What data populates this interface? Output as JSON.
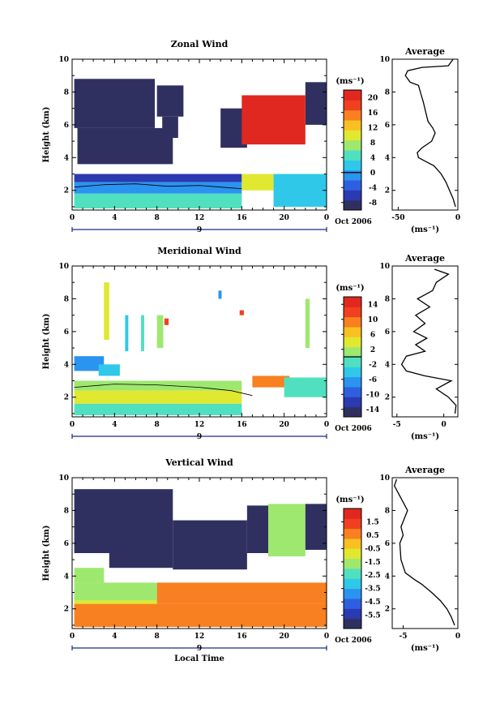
{
  "chart_data": [
    {
      "type": "heatmap",
      "title": "Zonal Wind",
      "ylabel": "Height (km)",
      "xlabel": "",
      "x_ticks": [
        "0",
        "4",
        "8",
        "12",
        "16",
        "20",
        "0"
      ],
      "y_ticks": [
        "2",
        "4",
        "6",
        "8",
        "10"
      ],
      "xlim": [
        0,
        24
      ],
      "ylim": [
        0.8,
        10
      ],
      "date_marker": "9",
      "date_label": "Oct 2006",
      "colorbar": {
        "unit": "(ms⁻¹)",
        "ticks": [
          "20",
          "16",
          "12",
          "8",
          "4",
          "0",
          "-4",
          "-8"
        ],
        "range": [
          -10,
          22
        ]
      },
      "regions": [
        {
          "x0": 0.2,
          "x1": 7.8,
          "y0": 5.8,
          "y1": 8.8,
          "level": 0.0
        },
        {
          "x0": 0.5,
          "x1": 9.5,
          "y0": 3.6,
          "y1": 5.8,
          "level": 0.02
        },
        {
          "x0": 8.0,
          "x1": 10.5,
          "y0": 6.5,
          "y1": 8.4,
          "level": 0.0
        },
        {
          "x0": 8.5,
          "x1": 10.0,
          "y0": 5.2,
          "y1": 6.5,
          "level": 0.01
        },
        {
          "x0": 14.0,
          "x1": 16.5,
          "y0": 4.6,
          "y1": 7.0,
          "level": 0.0
        },
        {
          "x0": 22.0,
          "x1": 24.0,
          "y0": 6.0,
          "y1": 8.6,
          "level": 0.0
        },
        {
          "x0": 16.0,
          "x1": 22.0,
          "y0": 4.8,
          "y1": 7.8,
          "level": 0.96
        },
        {
          "x0": 0.2,
          "x1": 16.0,
          "y0": 2.5,
          "y1": 3.0,
          "level": 0.12
        },
        {
          "x0": 0.2,
          "x1": 16.0,
          "y0": 1.8,
          "y1": 2.5,
          "level": 0.28
        },
        {
          "x0": 0.2,
          "x1": 16.0,
          "y0": 0.9,
          "y1": 1.8,
          "level": 0.42
        },
        {
          "x0": 16.0,
          "x1": 19.0,
          "y0": 2.0,
          "y1": 3.0,
          "level": 0.62
        },
        {
          "x0": 19.0,
          "x1": 24.0,
          "y0": 1.0,
          "y1": 3.0,
          "level": 0.35
        }
      ],
      "contour": [
        [
          0.2,
          2.2
        ],
        [
          3,
          2.35
        ],
        [
          6,
          2.4
        ],
        [
          9,
          2.25
        ],
        [
          12,
          2.3
        ],
        [
          14,
          2.2
        ],
        [
          16,
          2.1
        ]
      ],
      "profile": {
        "title": "Average",
        "xlabel": "(ms⁻¹)",
        "x_ticks": [
          "-50",
          "0"
        ],
        "xlim": [
          -55,
          0
        ],
        "y_ticks": [
          "2",
          "4",
          "6",
          "8",
          "10"
        ],
        "points": [
          [
            -2,
            1
          ],
          [
            -4,
            1.5
          ],
          [
            -7,
            2
          ],
          [
            -10,
            2.5
          ],
          [
            -14,
            3
          ],
          [
            -20,
            3.5
          ],
          [
            -28,
            3.8
          ],
          [
            -33,
            4
          ],
          [
            -34,
            4.3
          ],
          [
            -30,
            4.6
          ],
          [
            -22,
            5
          ],
          [
            -19,
            5.5
          ],
          [
            -21,
            5.8
          ],
          [
            -25,
            6.2
          ],
          [
            -27,
            6.8
          ],
          [
            -29,
            7.4
          ],
          [
            -31,
            7.9
          ],
          [
            -33,
            8.4
          ],
          [
            -40,
            8.6
          ],
          [
            -44,
            9
          ],
          [
            -42,
            9.3
          ],
          [
            -30,
            9.5
          ],
          [
            -8,
            9.6
          ],
          [
            -4,
            10
          ]
        ]
      }
    },
    {
      "type": "heatmap",
      "title": "Meridional Wind",
      "ylabel": "Height (km)",
      "xlabel": "",
      "x_ticks": [
        "0",
        "4",
        "8",
        "12",
        "16",
        "20",
        "0"
      ],
      "y_ticks": [
        "2",
        "4",
        "6",
        "8",
        "10"
      ],
      "xlim": [
        0,
        24
      ],
      "ylim": [
        0.8,
        10
      ],
      "date_marker": "9",
      "date_label": "Oct 2006",
      "colorbar": {
        "unit": "(ms⁻¹)",
        "ticks": [
          "14",
          "10",
          "6",
          "2",
          "-2",
          "-6",
          "-10",
          "-14"
        ],
        "range": [
          -16,
          16
        ]
      },
      "regions": [
        {
          "x0": 0.2,
          "x1": 3.0,
          "y0": 3.6,
          "y1": 4.5,
          "level": 0.25
        },
        {
          "x0": 2.5,
          "x1": 4.5,
          "y0": 3.3,
          "y1": 4.0,
          "level": 0.4
        },
        {
          "x0": 0.2,
          "x1": 16.0,
          "y0": 2.4,
          "y1": 3.0,
          "level": 0.5
        },
        {
          "x0": 0.2,
          "x1": 16.0,
          "y0": 1.6,
          "y1": 2.4,
          "level": 0.62
        },
        {
          "x0": 0.2,
          "x1": 16.0,
          "y0": 0.9,
          "y1": 1.6,
          "level": 0.45
        },
        {
          "x0": 17.0,
          "x1": 20.5,
          "y0": 2.6,
          "y1": 3.3,
          "level": 0.82
        },
        {
          "x0": 20.0,
          "x1": 24.0,
          "y0": 2.0,
          "y1": 3.2,
          "level": 0.48
        },
        {
          "x0": 3.0,
          "x1": 3.5,
          "y0": 5.5,
          "y1": 9.0,
          "level": 0.6
        },
        {
          "x0": 5.0,
          "x1": 5.3,
          "y0": 4.8,
          "y1": 7.0,
          "level": 0.35
        },
        {
          "x0": 6.5,
          "x1": 6.8,
          "y0": 4.8,
          "y1": 7.0,
          "level": 0.42
        },
        {
          "x0": 8.0,
          "x1": 8.6,
          "y0": 5.0,
          "y1": 7.0,
          "level": 0.58
        },
        {
          "x0": 8.7,
          "x1": 9.1,
          "y0": 6.4,
          "y1": 6.8,
          "level": 0.95
        },
        {
          "x0": 13.8,
          "x1": 14.1,
          "y0": 8.0,
          "y1": 8.5,
          "level": 0.3
        },
        {
          "x0": 15.8,
          "x1": 16.2,
          "y0": 7.0,
          "y1": 7.3,
          "level": 0.9
        },
        {
          "x0": 22.0,
          "x1": 22.4,
          "y0": 5.0,
          "y1": 8.0,
          "level": 0.55
        }
      ],
      "contour": [
        [
          0.2,
          2.6
        ],
        [
          4,
          2.8
        ],
        [
          8,
          2.75
        ],
        [
          12,
          2.6
        ],
        [
          15,
          2.4
        ],
        [
          17,
          2.1
        ]
      ],
      "profile": {
        "title": "Average",
        "xlabel": "(ms⁻¹)",
        "x_ticks": [
          "-5",
          "0"
        ],
        "xlim": [
          -5.5,
          1.5
        ],
        "y_ticks": [
          "2",
          "4",
          "6",
          "8",
          "10"
        ],
        "points": [
          [
            1.2,
            1
          ],
          [
            1.3,
            1.5
          ],
          [
            0.5,
            2
          ],
          [
            -0.8,
            2.5
          ],
          [
            0.8,
            3
          ],
          [
            -2,
            3.3
          ],
          [
            -4,
            3.6
          ],
          [
            -4.5,
            4
          ],
          [
            -4,
            4.5
          ],
          [
            -2,
            4.8
          ],
          [
            -3,
            5.2
          ],
          [
            -1.8,
            5.6
          ],
          [
            -3.2,
            6
          ],
          [
            -2,
            6.5
          ],
          [
            -3,
            7
          ],
          [
            -1.5,
            7.5
          ],
          [
            -2.8,
            8
          ],
          [
            -1.2,
            8.5
          ],
          [
            -0.8,
            9
          ],
          [
            0.5,
            9.5
          ],
          [
            -1,
            9.8
          ]
        ]
      }
    },
    {
      "type": "heatmap",
      "title": "Vertical Wind",
      "ylabel": "Height (km)",
      "xlabel": "Local Time",
      "x_ticks": [
        "0",
        "4",
        "8",
        "12",
        "16",
        "20",
        "0"
      ],
      "y_ticks": [
        "2",
        "4",
        "6",
        "8",
        "10"
      ],
      "xlim": [
        0,
        24
      ],
      "ylim": [
        0.8,
        10
      ],
      "date_marker": "9",
      "date_label": "Oct 2006",
      "colorbar": {
        "unit": "(ms⁻¹)",
        "ticks": [
          "1.5",
          "0.5",
          "-0.5",
          "-1.5",
          "-2.5",
          "-3.5",
          "-4.5",
          "-5.5"
        ],
        "range": [
          -6.5,
          2.5
        ]
      },
      "regions": [
        {
          "x0": 0.2,
          "x1": 9.5,
          "y0": 5.4,
          "y1": 9.3,
          "level": 0.0
        },
        {
          "x0": 3.5,
          "x1": 9.5,
          "y0": 4.5,
          "y1": 5.4,
          "level": 0.01
        },
        {
          "x0": 9.5,
          "x1": 16.5,
          "y0": 4.4,
          "y1": 7.4,
          "level": 0.0
        },
        {
          "x0": 16.5,
          "x1": 18.5,
          "y0": 5.4,
          "y1": 8.3,
          "level": 0.02
        },
        {
          "x0": 18.5,
          "x1": 22.0,
          "y0": 5.2,
          "y1": 8.4,
          "level": 0.55
        },
        {
          "x0": 22.0,
          "x1": 24.0,
          "y0": 5.6,
          "y1": 8.4,
          "level": 0.02
        },
        {
          "x0": 0.2,
          "x1": 3.0,
          "y0": 3.6,
          "y1": 4.5,
          "level": 0.5
        },
        {
          "x0": 0.2,
          "x1": 8.0,
          "y0": 2.5,
          "y1": 3.6,
          "level": 0.55
        },
        {
          "x0": 0.2,
          "x1": 8.0,
          "y0": 1.6,
          "y1": 2.5,
          "level": 0.62
        },
        {
          "x0": 8.0,
          "x1": 24.0,
          "y0": 2.3,
          "y1": 3.6,
          "level": 0.8
        },
        {
          "x0": 0.2,
          "x1": 24.0,
          "y0": 0.9,
          "y1": 2.3,
          "level": 0.85
        }
      ],
      "contour": [],
      "profile": {
        "title": "Average",
        "xlabel": "(ms⁻¹)",
        "x_ticks": [
          "-5",
          "0"
        ],
        "xlim": [
          -6,
          0
        ],
        "y_ticks": [
          "2",
          "4",
          "6",
          "8",
          "10"
        ],
        "points": [
          [
            -0.3,
            1
          ],
          [
            -0.6,
            1.5
          ],
          [
            -1,
            2
          ],
          [
            -1.6,
            2.5
          ],
          [
            -2.4,
            3
          ],
          [
            -3.3,
            3.5
          ],
          [
            -4,
            3.8
          ],
          [
            -4.8,
            4.2
          ],
          [
            -5.2,
            5
          ],
          [
            -5.3,
            6
          ],
          [
            -5,
            6.5
          ],
          [
            -5.2,
            7
          ],
          [
            -4.9,
            7.5
          ],
          [
            -4.6,
            8
          ],
          [
            -5,
            8.5
          ],
          [
            -5.4,
            9
          ],
          [
            -5.8,
            9.5
          ],
          [
            -5.6,
            9.9
          ]
        ]
      }
    }
  ],
  "shared": {
    "cmap": [
      "#303060",
      "#2b3ab0",
      "#2e5fe0",
      "#2b93f0",
      "#2fc8e8",
      "#50e0c0",
      "#9ee870",
      "#e0e830",
      "#f8c020",
      "#f88020",
      "#f04020",
      "#e02820"
    ]
  }
}
